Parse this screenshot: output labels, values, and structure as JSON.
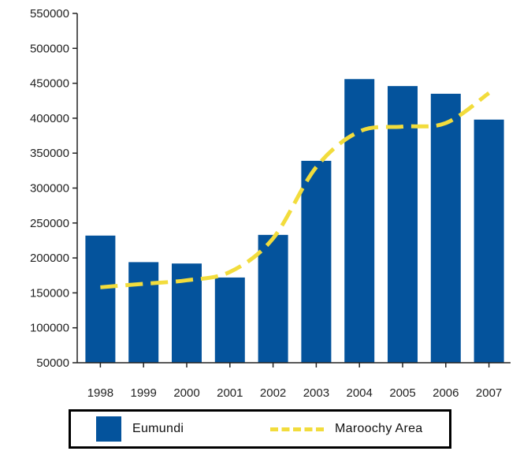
{
  "chart_data": {
    "type": "bar",
    "categories": [
      "1998",
      "1999",
      "2000",
      "2001",
      "2002",
      "2003",
      "2004",
      "2005",
      "2006",
      "2007"
    ],
    "series": [
      {
        "name": "Eumundi",
        "type": "bar",
        "color": "#04539c",
        "values": [
          232000,
          194000,
          192000,
          172000,
          233000,
          339000,
          456000,
          446000,
          435000,
          398000
        ]
      },
      {
        "name": "Maroochy Area",
        "type": "line",
        "style": "dashed",
        "color": "#f2dc3c",
        "values": [
          158000,
          163000,
          168000,
          180000,
          228000,
          330000,
          381000,
          388000,
          393000,
          436000
        ]
      }
    ],
    "ylim": [
      50000,
      550000
    ],
    "yticks": [
      "50000",
      "100000",
      "150000",
      "200000",
      "250000",
      "300000",
      "350000",
      "400000",
      "450000",
      "500000",
      "550000"
    ],
    "title": "",
    "xlabel": "",
    "ylabel": "",
    "grid": false,
    "legend_position": "bottom"
  },
  "legend": {
    "items": [
      {
        "label": "Eumundi",
        "color": "#04539c"
      },
      {
        "label": "Maroochy Area",
        "color": "#f2dc3c"
      }
    ]
  }
}
